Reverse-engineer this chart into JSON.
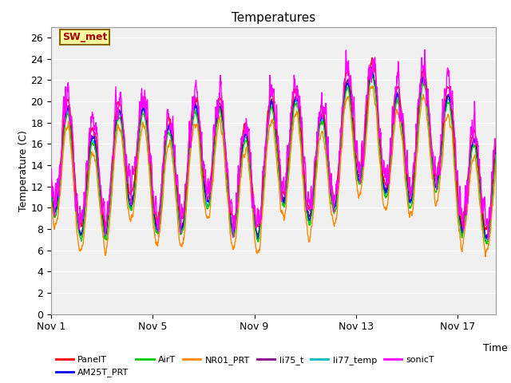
{
  "title": "Temperatures",
  "xlabel": "Time",
  "ylabel": "Temperature (C)",
  "xlim": [
    1,
    18.5
  ],
  "ylim": [
    0,
    27
  ],
  "yticks": [
    0,
    2,
    4,
    6,
    8,
    10,
    12,
    14,
    16,
    18,
    20,
    22,
    24,
    26
  ],
  "xtick_labels": [
    "Nov 1",
    "Nov 5",
    "Nov 9",
    "Nov 13",
    "Nov 17"
  ],
  "xtick_positions": [
    1,
    5,
    9,
    13,
    17
  ],
  "annotation_text": "SW_met",
  "annotation_color": "#AA0000",
  "annotation_bg": "#FFFFA0",
  "annotation_border": "#886600",
  "series_colors": {
    "PanelT": "#FF0000",
    "AM25T_PRT": "#0000FF",
    "AirT": "#00CC00",
    "NR01_PRT": "#FF8800",
    "li75_t": "#880088",
    "li77_temp": "#00BBBB",
    "sonicT": "#FF00FF"
  },
  "background_color": "#FFFFFF",
  "plot_bg": "#F0F0F0",
  "grid_color": "#FFFFFF",
  "title_fontsize": 11,
  "label_fontsize": 9,
  "tick_fontsize": 9,
  "legend_fontsize": 8,
  "line_width": 1.0
}
